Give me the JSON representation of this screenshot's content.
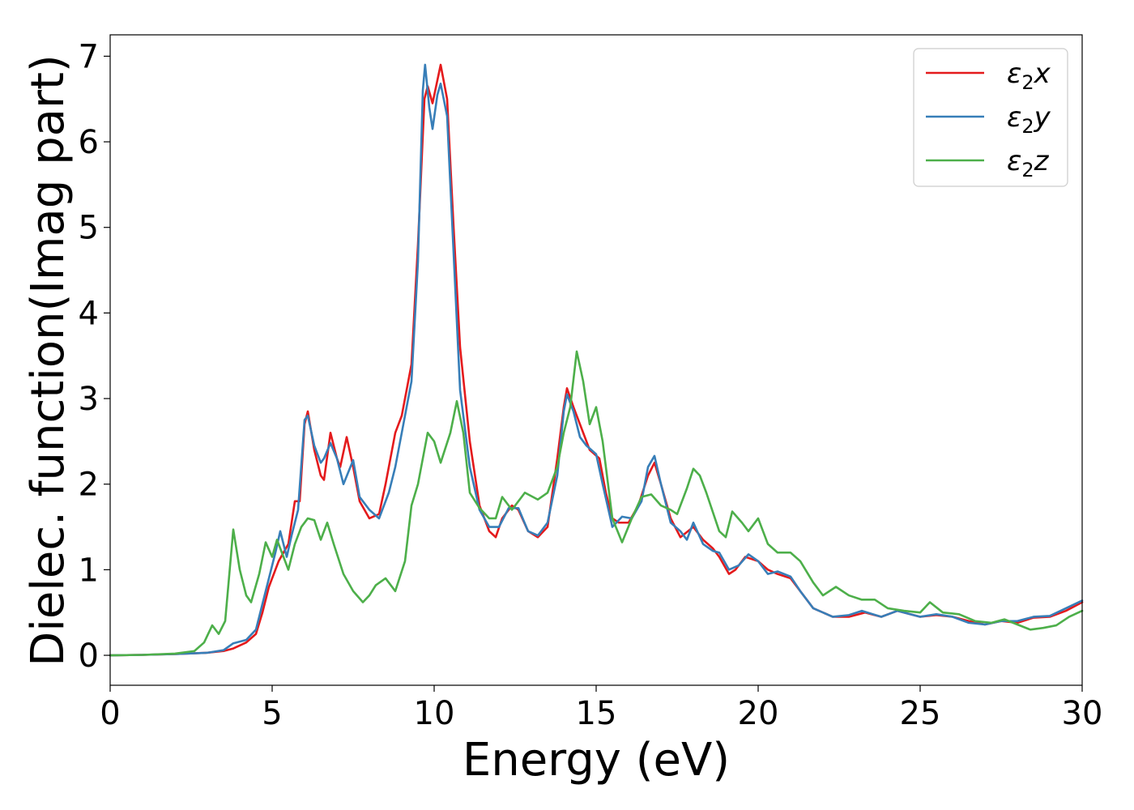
{
  "chart_data": {
    "type": "line",
    "title": "",
    "xlabel": "Energy (eV)",
    "ylabel": "Dielec. function(Imag part)",
    "xlim": [
      0,
      30
    ],
    "ylim": [
      -0.35,
      7.25
    ],
    "xticks": [
      0,
      5,
      10,
      15,
      20,
      25,
      30
    ],
    "yticks": [
      0,
      1,
      2,
      3,
      4,
      5,
      6,
      7
    ],
    "grid": false,
    "legend_position": "top-right",
    "series": [
      {
        "name": "ε2x",
        "legend": {
          "base": "ε",
          "sub": "2",
          "suffix": "x"
        },
        "color": "#e41a1c",
        "points": [
          [
            0,
            0
          ],
          [
            1,
            0.005
          ],
          [
            2,
            0.015
          ],
          [
            3,
            0.03
          ],
          [
            3.5,
            0.05
          ],
          [
            3.8,
            0.08
          ],
          [
            4.2,
            0.15
          ],
          [
            4.5,
            0.25
          ],
          [
            4.7,
            0.5
          ],
          [
            4.9,
            0.8
          ],
          [
            5.2,
            1.1
          ],
          [
            5.5,
            1.3
          ],
          [
            5.7,
            1.8
          ],
          [
            5.85,
            1.8
          ],
          [
            6.0,
            2.7
          ],
          [
            6.1,
            2.85
          ],
          [
            6.3,
            2.4
          ],
          [
            6.5,
            2.1
          ],
          [
            6.6,
            2.05
          ],
          [
            6.8,
            2.6
          ],
          [
            7.0,
            2.3
          ],
          [
            7.1,
            2.2
          ],
          [
            7.3,
            2.55
          ],
          [
            7.5,
            2.2
          ],
          [
            7.7,
            1.8
          ],
          [
            8.0,
            1.6
          ],
          [
            8.3,
            1.65
          ],
          [
            8.5,
            2.0
          ],
          [
            8.8,
            2.6
          ],
          [
            9.0,
            2.8
          ],
          [
            9.3,
            3.4
          ],
          [
            9.5,
            4.8
          ],
          [
            9.7,
            6.5
          ],
          [
            9.8,
            6.65
          ],
          [
            9.95,
            6.45
          ],
          [
            10.2,
            6.9
          ],
          [
            10.4,
            6.5
          ],
          [
            10.6,
            5.0
          ],
          [
            10.8,
            3.6
          ],
          [
            11.1,
            2.5
          ],
          [
            11.4,
            1.75
          ],
          [
            11.7,
            1.45
          ],
          [
            11.9,
            1.38
          ],
          [
            12.1,
            1.6
          ],
          [
            12.4,
            1.75
          ],
          [
            12.6,
            1.7
          ],
          [
            12.9,
            1.45
          ],
          [
            13.2,
            1.38
          ],
          [
            13.5,
            1.5
          ],
          [
            13.8,
            2.3
          ],
          [
            14.0,
            2.9
          ],
          [
            14.1,
            3.12
          ],
          [
            14.3,
            2.9
          ],
          [
            14.5,
            2.7
          ],
          [
            14.8,
            2.4
          ],
          [
            15.1,
            2.3
          ],
          [
            15.3,
            1.9
          ],
          [
            15.5,
            1.6
          ],
          [
            15.7,
            1.55
          ],
          [
            16.0,
            1.55
          ],
          [
            16.3,
            1.75
          ],
          [
            16.6,
            2.1
          ],
          [
            16.8,
            2.25
          ],
          [
            17.0,
            2.0
          ],
          [
            17.3,
            1.6
          ],
          [
            17.6,
            1.38
          ],
          [
            18.0,
            1.5
          ],
          [
            18.3,
            1.35
          ],
          [
            18.6,
            1.25
          ],
          [
            18.8,
            1.15
          ],
          [
            19.1,
            0.95
          ],
          [
            19.3,
            1.0
          ],
          [
            19.6,
            1.15
          ],
          [
            20.0,
            1.1
          ],
          [
            20.3,
            1.0
          ],
          [
            20.6,
            0.95
          ],
          [
            21.0,
            0.9
          ],
          [
            21.3,
            0.75
          ],
          [
            21.7,
            0.55
          ],
          [
            22.3,
            0.45
          ],
          [
            22.8,
            0.45
          ],
          [
            23.3,
            0.5
          ],
          [
            23.8,
            0.45
          ],
          [
            24.3,
            0.52
          ],
          [
            25.0,
            0.45
          ],
          [
            25.5,
            0.47
          ],
          [
            26.0,
            0.45
          ],
          [
            26.5,
            0.4
          ],
          [
            27.0,
            0.36
          ],
          [
            27.5,
            0.4
          ],
          [
            28.0,
            0.38
          ],
          [
            28.5,
            0.44
          ],
          [
            29.0,
            0.45
          ],
          [
            29.5,
            0.52
          ],
          [
            30.0,
            0.62
          ]
        ]
      },
      {
        "name": "ε2y",
        "legend": {
          "base": "ε",
          "sub": "2",
          "suffix": "y"
        },
        "color": "#377eb8",
        "points": [
          [
            0,
            0
          ],
          [
            1,
            0.005
          ],
          [
            2,
            0.015
          ],
          [
            3,
            0.03
          ],
          [
            3.5,
            0.06
          ],
          [
            3.8,
            0.14
          ],
          [
            4.2,
            0.18
          ],
          [
            4.5,
            0.3
          ],
          [
            4.7,
            0.6
          ],
          [
            4.9,
            0.9
          ],
          [
            5.1,
            1.2
          ],
          [
            5.25,
            1.45
          ],
          [
            5.45,
            1.15
          ],
          [
            5.6,
            1.4
          ],
          [
            5.8,
            1.7
          ],
          [
            6.0,
            2.75
          ],
          [
            6.1,
            2.8
          ],
          [
            6.3,
            2.45
          ],
          [
            6.5,
            2.25
          ],
          [
            6.6,
            2.3
          ],
          [
            6.8,
            2.48
          ],
          [
            7.0,
            2.3
          ],
          [
            7.2,
            2.0
          ],
          [
            7.5,
            2.28
          ],
          [
            7.7,
            1.85
          ],
          [
            8.0,
            1.7
          ],
          [
            8.3,
            1.6
          ],
          [
            8.6,
            1.9
          ],
          [
            8.8,
            2.2
          ],
          [
            9.1,
            2.8
          ],
          [
            9.3,
            3.2
          ],
          [
            9.5,
            4.6
          ],
          [
            9.65,
            6.6
          ],
          [
            9.72,
            6.9
          ],
          [
            9.85,
            6.4
          ],
          [
            9.95,
            6.15
          ],
          [
            10.1,
            6.55
          ],
          [
            10.2,
            6.68
          ],
          [
            10.4,
            6.3
          ],
          [
            10.55,
            5.1
          ],
          [
            10.8,
            3.1
          ],
          [
            11.1,
            2.2
          ],
          [
            11.4,
            1.7
          ],
          [
            11.7,
            1.5
          ],
          [
            12.0,
            1.5
          ],
          [
            12.3,
            1.72
          ],
          [
            12.6,
            1.72
          ],
          [
            12.9,
            1.45
          ],
          [
            13.2,
            1.4
          ],
          [
            13.5,
            1.55
          ],
          [
            13.8,
            2.1
          ],
          [
            14.0,
            2.85
          ],
          [
            14.1,
            3.05
          ],
          [
            14.3,
            2.85
          ],
          [
            14.5,
            2.55
          ],
          [
            14.7,
            2.45
          ],
          [
            15.0,
            2.35
          ],
          [
            15.2,
            2.0
          ],
          [
            15.5,
            1.5
          ],
          [
            15.8,
            1.62
          ],
          [
            16.1,
            1.6
          ],
          [
            16.4,
            1.8
          ],
          [
            16.6,
            2.2
          ],
          [
            16.8,
            2.33
          ],
          [
            17.0,
            2.0
          ],
          [
            17.3,
            1.55
          ],
          [
            17.6,
            1.45
          ],
          [
            17.8,
            1.35
          ],
          [
            18.0,
            1.55
          ],
          [
            18.3,
            1.3
          ],
          [
            18.6,
            1.22
          ],
          [
            18.8,
            1.2
          ],
          [
            19.1,
            1.0
          ],
          [
            19.4,
            1.05
          ],
          [
            19.7,
            1.18
          ],
          [
            20.0,
            1.1
          ],
          [
            20.3,
            0.95
          ],
          [
            20.6,
            0.98
          ],
          [
            21.0,
            0.92
          ],
          [
            21.3,
            0.75
          ],
          [
            21.7,
            0.55
          ],
          [
            22.3,
            0.45
          ],
          [
            22.8,
            0.47
          ],
          [
            23.2,
            0.52
          ],
          [
            23.8,
            0.45
          ],
          [
            24.3,
            0.52
          ],
          [
            25.0,
            0.45
          ],
          [
            25.5,
            0.48
          ],
          [
            26.0,
            0.45
          ],
          [
            26.5,
            0.38
          ],
          [
            27.0,
            0.36
          ],
          [
            27.5,
            0.4
          ],
          [
            28.0,
            0.4
          ],
          [
            28.5,
            0.45
          ],
          [
            29.0,
            0.46
          ],
          [
            29.5,
            0.55
          ],
          [
            30.0,
            0.64
          ]
        ]
      },
      {
        "name": "ε2z",
        "legend": {
          "base": "ε",
          "sub": "2",
          "suffix": "z"
        },
        "color": "#4daf4a",
        "points": [
          [
            0,
            0
          ],
          [
            1,
            0.005
          ],
          [
            2,
            0.02
          ],
          [
            2.6,
            0.05
          ],
          [
            2.9,
            0.15
          ],
          [
            3.15,
            0.35
          ],
          [
            3.35,
            0.25
          ],
          [
            3.55,
            0.4
          ],
          [
            3.8,
            1.47
          ],
          [
            4.0,
            1.0
          ],
          [
            4.2,
            0.7
          ],
          [
            4.35,
            0.62
          ],
          [
            4.6,
            0.95
          ],
          [
            4.8,
            1.32
          ],
          [
            5.0,
            1.15
          ],
          [
            5.15,
            1.35
          ],
          [
            5.3,
            1.2
          ],
          [
            5.5,
            1.0
          ],
          [
            5.7,
            1.3
          ],
          [
            5.9,
            1.5
          ],
          [
            6.1,
            1.6
          ],
          [
            6.3,
            1.58
          ],
          [
            6.5,
            1.35
          ],
          [
            6.7,
            1.55
          ],
          [
            6.9,
            1.3
          ],
          [
            7.2,
            0.95
          ],
          [
            7.5,
            0.75
          ],
          [
            7.8,
            0.62
          ],
          [
            8.0,
            0.7
          ],
          [
            8.2,
            0.82
          ],
          [
            8.5,
            0.9
          ],
          [
            8.8,
            0.75
          ],
          [
            9.1,
            1.1
          ],
          [
            9.3,
            1.75
          ],
          [
            9.5,
            2.0
          ],
          [
            9.8,
            2.6
          ],
          [
            10.0,
            2.5
          ],
          [
            10.2,
            2.25
          ],
          [
            10.5,
            2.6
          ],
          [
            10.7,
            2.97
          ],
          [
            10.9,
            2.6
          ],
          [
            11.1,
            1.9
          ],
          [
            11.4,
            1.72
          ],
          [
            11.7,
            1.6
          ],
          [
            11.9,
            1.6
          ],
          [
            12.1,
            1.85
          ],
          [
            12.4,
            1.7
          ],
          [
            12.8,
            1.9
          ],
          [
            13.2,
            1.82
          ],
          [
            13.5,
            1.9
          ],
          [
            13.8,
            2.2
          ],
          [
            14.0,
            2.6
          ],
          [
            14.2,
            2.9
          ],
          [
            14.4,
            3.55
          ],
          [
            14.6,
            3.2
          ],
          [
            14.8,
            2.7
          ],
          [
            15.0,
            2.9
          ],
          [
            15.2,
            2.5
          ],
          [
            15.5,
            1.6
          ],
          [
            15.8,
            1.32
          ],
          [
            16.1,
            1.6
          ],
          [
            16.4,
            1.85
          ],
          [
            16.7,
            1.88
          ],
          [
            17.0,
            1.75
          ],
          [
            17.3,
            1.7
          ],
          [
            17.5,
            1.65
          ],
          [
            17.8,
            1.95
          ],
          [
            18.0,
            2.18
          ],
          [
            18.2,
            2.1
          ],
          [
            18.4,
            1.9
          ],
          [
            18.8,
            1.45
          ],
          [
            19.0,
            1.38
          ],
          [
            19.2,
            1.68
          ],
          [
            19.5,
            1.55
          ],
          [
            19.7,
            1.45
          ],
          [
            20.0,
            1.6
          ],
          [
            20.3,
            1.3
          ],
          [
            20.6,
            1.2
          ],
          [
            21.0,
            1.2
          ],
          [
            21.3,
            1.1
          ],
          [
            21.7,
            0.85
          ],
          [
            22.0,
            0.7
          ],
          [
            22.4,
            0.8
          ],
          [
            22.8,
            0.7
          ],
          [
            23.2,
            0.65
          ],
          [
            23.6,
            0.65
          ],
          [
            24.0,
            0.55
          ],
          [
            24.5,
            0.52
          ],
          [
            25.0,
            0.5
          ],
          [
            25.3,
            0.62
          ],
          [
            25.7,
            0.5
          ],
          [
            26.2,
            0.48
          ],
          [
            26.7,
            0.4
          ],
          [
            27.2,
            0.38
          ],
          [
            27.6,
            0.42
          ],
          [
            28.0,
            0.36
          ],
          [
            28.4,
            0.3
          ],
          [
            28.8,
            0.32
          ],
          [
            29.2,
            0.35
          ],
          [
            29.6,
            0.45
          ],
          [
            30.0,
            0.52
          ]
        ]
      }
    ]
  }
}
